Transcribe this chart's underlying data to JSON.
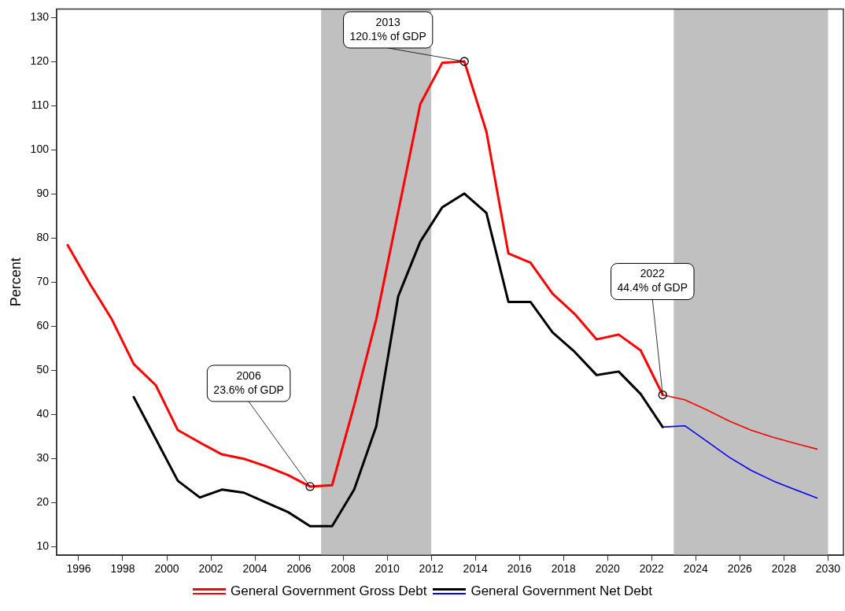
{
  "chart_data": {
    "type": "line",
    "ylabel": "Percent",
    "xlim": [
      1995,
      2030.7
    ],
    "xticks": [
      1996,
      1998,
      2000,
      2002,
      2004,
      2006,
      2008,
      2010,
      2012,
      2014,
      2016,
      2018,
      2020,
      2022,
      2024,
      2026,
      2028,
      2030
    ],
    "ylim": [
      8,
      132
    ],
    "yticks": [
      10,
      20,
      30,
      40,
      50,
      60,
      70,
      80,
      90,
      100,
      110,
      120,
      130
    ],
    "grid": false,
    "legend": "bottom",
    "marker": "none",
    "line_style": "solid",
    "series": [
      {
        "name": "General Government Gross Debt",
        "color": "#ff0000",
        "x": [
          1995.5,
          1996.5,
          1997.5,
          1998.5,
          1999.5,
          2000.5,
          2001.5,
          2002.5,
          2003.5,
          2004.5,
          2005.5,
          2006.5,
          2007.5,
          2008.5,
          2009.5,
          2010.5,
          2011.5,
          2012.5,
          2013.5,
          2014.5,
          2015.5,
          2016.5,
          2017.5,
          2018.5,
          2019.5,
          2020.5,
          2021.5,
          2022.5
        ],
        "values": [
          78.4,
          69.7,
          61.6,
          51.4,
          46.6,
          36.4,
          33.6,
          30.9,
          29.9,
          28.2,
          26.2,
          23.6,
          23.9,
          42,
          61.5,
          86,
          110.4,
          119.8,
          120.1,
          104.2,
          76.5,
          74.4,
          67.4,
          62.8,
          57.0,
          58.1,
          54.5,
          44.4
        ]
      },
      {
        "color": "#ff0000",
        "x": [
          2022.5,
          2023.5,
          2024.5,
          2025.5,
          2026.5,
          2027.5,
          2028.5,
          2029.5
        ],
        "values": [
          44.4,
          43.3,
          41.0,
          38.5,
          36.4,
          34.8,
          33.4,
          32.1
        ]
      },
      {
        "name": "General Government Net Debt",
        "color": "#000000",
        "x": [
          1998.5,
          1999.5,
          2000.5,
          2001.5,
          2002.5,
          2003.5,
          2004.5,
          2005.5,
          2006.5,
          2007.5,
          2008.5,
          2009.5,
          2010.5,
          2011.5,
          2012.5,
          2013.5,
          2014.5,
          2015.5,
          2016.5,
          2017.5,
          2018.5,
          2019.5,
          2020.5,
          2021.5,
          2022.5
        ],
        "values": [
          43.9,
          34.4,
          24.9,
          21.1,
          22.9,
          22.2,
          20.0,
          17.8,
          14.6,
          14.6,
          22.9,
          37.2,
          66.8,
          79.2,
          87.0,
          90.1,
          85.7,
          65.5,
          65.5,
          58.6,
          54.2,
          48.9,
          49.7,
          44.6,
          37.1
        ]
      },
      {
        "color": "#0000ff",
        "x": [
          2022.5,
          2023.5,
          2024.5,
          2025.5,
          2026.5,
          2027.5,
          2028.5,
          2029.5
        ],
        "values": [
          37.1,
          37.4,
          33.9,
          30.3,
          27.3,
          24.9,
          22.9,
          21.0
        ]
      }
    ],
    "bands": [
      {
        "axis": "x",
        "from": 2007,
        "to": 2012,
        "color": "#c0c0c0"
      },
      {
        "axis": "x",
        "from": 2023,
        "to": 2030,
        "color": "#c0c0c0"
      }
    ],
    "annotations": [
      {
        "text": "2006\n23.6% of GDP",
        "x": 2006.5,
        "y": 23.6
      },
      {
        "text": "2013\n120.1% of GDP",
        "x": 2013.5,
        "y": 120.1
      },
      {
        "text": "2022\n44.4% of GDP",
        "x": 2022.5,
        "y": 44.4
      }
    ]
  }
}
